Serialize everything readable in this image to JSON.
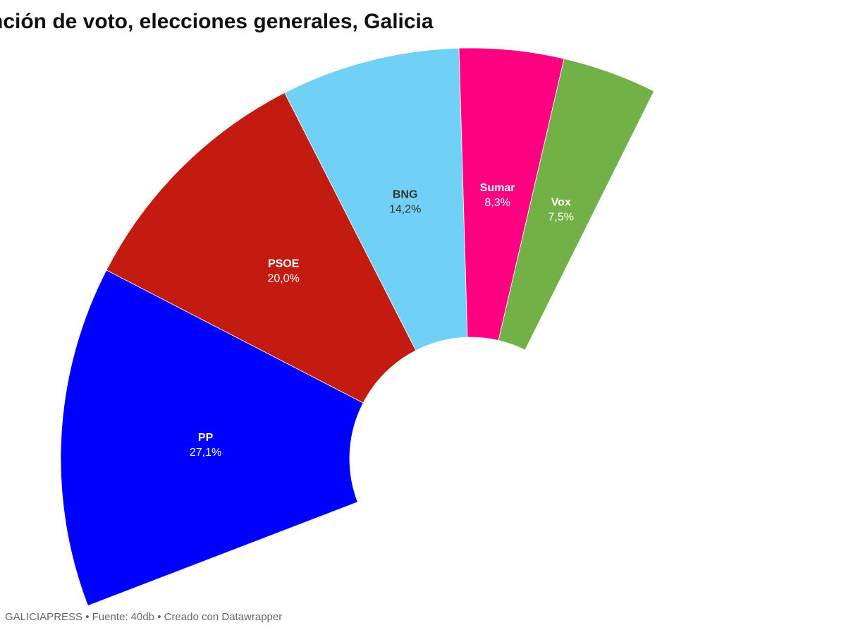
{
  "title": "nción de voto, elecciones generales, Galicia",
  "footer": {
    "source": "GALICIAPRESS • Fuente: 40db",
    "credit": "• Creado con Datawrapper"
  },
  "chart_data": {
    "type": "pie",
    "title": "nción de voto, elecciones generales, Galicia",
    "categories": [
      "PP",
      "PSOE",
      "BNG",
      "Sumar",
      "Vox"
    ],
    "series": [
      {
        "values": [
          27.1,
          20.0,
          14.2,
          8.3,
          7.5
        ],
        "labels": [
          "27,1%",
          "20,0%",
          "14,2%",
          "8,3%",
          "7,5%"
        ]
      }
    ],
    "colors": [
      "#0000ff",
      "#c41b10",
      "#70d0f5",
      "#ff0080",
      "#72b145"
    ],
    "label_colors": [
      "#ffffff",
      "#ffffff",
      "#333333",
      "#ffffff",
      "#ffffff"
    ]
  }
}
